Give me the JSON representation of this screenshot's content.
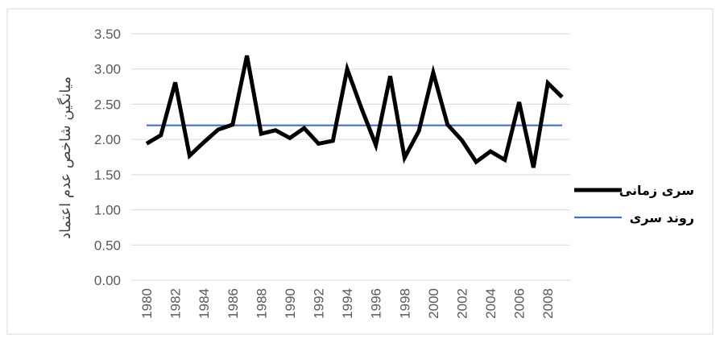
{
  "chart_data": {
    "type": "line",
    "x": [
      1980,
      1981,
      1982,
      1983,
      1984,
      1985,
      1986,
      1987,
      1988,
      1989,
      1990,
      1991,
      1992,
      1993,
      1994,
      1995,
      1996,
      1997,
      1998,
      1999,
      2000,
      2001,
      2002,
      2003,
      2004,
      2005,
      2006,
      2007,
      2008,
      2009
    ],
    "x_tick_labels": [
      "1980",
      "1982",
      "1984",
      "1986",
      "1988",
      "1990",
      "1992",
      "1994",
      "1996",
      "1998",
      "2000",
      "2002",
      "2004",
      "2006",
      "2008"
    ],
    "y_tick_labels": [
      "0.00",
      "0.50",
      "1.00",
      "1.50",
      "2.00",
      "2.50",
      "3.00",
      "3.50"
    ],
    "ylim": [
      0,
      3.5
    ],
    "ylabel": "میانگین شاخص عدم اعتماد",
    "xlabel": "",
    "title": "",
    "grid": "horizontal",
    "legend_position": "right",
    "series": [
      {
        "name": "سری زمانی",
        "color": "#000000",
        "values": [
          1.94,
          2.06,
          2.81,
          1.77,
          1.96,
          2.14,
          2.21,
          3.19,
          2.08,
          2.13,
          2.02,
          2.16,
          1.94,
          1.98,
          3.0,
          2.44,
          1.92,
          2.9,
          1.74,
          2.12,
          2.95,
          2.21,
          1.99,
          1.68,
          1.83,
          1.71,
          2.53,
          1.6,
          2.8,
          2.6
        ]
      },
      {
        "name": "روند سری",
        "color": "#4472c4",
        "values": [
          2.2,
          2.2,
          2.2,
          2.2,
          2.2,
          2.2,
          2.2,
          2.2,
          2.2,
          2.2,
          2.2,
          2.2,
          2.2,
          2.2,
          2.2,
          2.2,
          2.2,
          2.2,
          2.2,
          2.2,
          2.2,
          2.2,
          2.2,
          2.2,
          2.2,
          2.2,
          2.2,
          2.2,
          2.2,
          2.2
        ]
      }
    ]
  }
}
